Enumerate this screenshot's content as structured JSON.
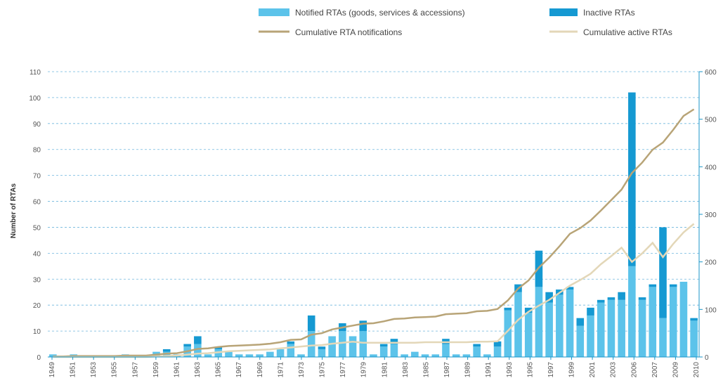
{
  "chart_data": {
    "type": "bar",
    "ylabel": "Number of RTAs",
    "ylim": [
      0,
      110
    ],
    "y_ticks": [
      0,
      10,
      20,
      30,
      40,
      50,
      60,
      70,
      80,
      90,
      100,
      110
    ],
    "y2lim": [
      0,
      600
    ],
    "y2_ticks": [
      0,
      100,
      200,
      300,
      400,
      500,
      600
    ],
    "grid": true,
    "legend_position": "top-right",
    "colors": {
      "notified": "#5cc3ea",
      "inactive": "#1599d2",
      "cumulative": "#b8a477",
      "cumulative_active": "#e3d7b8",
      "axis": "#1a96c8",
      "grid": "#6fb6dd"
    },
    "x_tick_labels": [
      "1949",
      "1951",
      "1953",
      "1955",
      "1957",
      "1959",
      "1961",
      "1963",
      "1965",
      "1967",
      "1969",
      "1971",
      "1973",
      "1975",
      "1977",
      "1979",
      "1981",
      "1983",
      "1985",
      "1987",
      "1989",
      "1991",
      "1993",
      "1995",
      "1997",
      "1999",
      "2001",
      "2003",
      "2006",
      "2007",
      "2009",
      "2010"
    ],
    "x": [
      1948,
      1949,
      1950,
      1951,
      1952,
      1953,
      1954,
      1955,
      1956,
      1957,
      1958,
      1959,
      1960,
      1961,
      1962,
      1963,
      1964,
      1965,
      1966,
      1967,
      1968,
      1969,
      1970,
      1971,
      1972,
      1973,
      1974,
      1975,
      1976,
      1977,
      1978,
      1979,
      1980,
      1981,
      1982,
      1983,
      1984,
      1985,
      1986,
      1987,
      1988,
      1989,
      1990,
      1991,
      1992,
      1993,
      1994,
      1995,
      1996,
      1997,
      1998,
      1999,
      2000,
      2001,
      2002,
      2003,
      2004,
      2005,
      2006,
      2007,
      2008,
      2009,
      2010
    ],
    "series": [
      {
        "name": "Notified RTAs (goods, services & accessions)",
        "kind": "bar",
        "values": [
          1,
          0,
          1,
          0,
          0,
          0,
          0,
          1,
          0,
          0,
          2,
          2,
          1,
          4,
          5,
          1,
          3,
          2,
          1,
          1,
          1,
          2,
          3,
          5,
          1,
          10,
          3,
          8,
          10,
          8,
          10,
          1,
          4,
          5,
          1,
          2,
          1,
          1,
          5,
          1,
          1,
          4,
          1,
          4,
          18,
          25,
          17,
          27,
          21,
          24,
          26,
          12,
          16,
          21,
          22,
          22,
          35,
          22,
          27,
          15,
          27,
          29,
          14
        ]
      },
      {
        "name": "Inactive RTAs",
        "kind": "bar",
        "values": [
          0,
          0,
          0,
          0,
          0,
          0,
          0,
          0,
          0,
          0,
          0,
          1,
          0,
          1,
          3,
          0,
          1,
          0,
          0,
          0,
          0,
          0,
          0,
          1,
          0,
          6,
          1,
          0,
          3,
          0,
          4,
          0,
          1,
          2,
          0,
          0,
          0,
          0,
          2,
          0,
          0,
          1,
          0,
          2,
          1,
          3,
          2,
          14,
          4,
          2,
          1,
          3,
          3,
          1,
          1,
          3,
          67,
          1,
          1,
          35,
          1,
          0,
          1
        ]
      },
      {
        "name": "Cumulative RTA notifications",
        "kind": "line",
        "axis": "right",
        "values": [
          1,
          1,
          2,
          2,
          2,
          2,
          2,
          3,
          3,
          3,
          5,
          7,
          8,
          12,
          17,
          18,
          21,
          23,
          24,
          25,
          26,
          28,
          31,
          36,
          37,
          47,
          50,
          58,
          62,
          66,
          70,
          71,
          75,
          80,
          81,
          83,
          84,
          85,
          90,
          91,
          92,
          96,
          97,
          101,
          119,
          144,
          161,
          188,
          209,
          233,
          259,
          271,
          287,
          308,
          330,
          352,
          387,
          409,
          436,
          451,
          478,
          507,
          521
        ]
      },
      {
        "name": "Cumulative active RTAs",
        "kind": "line",
        "axis": "right",
        "values": [
          0,
          0,
          0,
          0,
          0,
          0,
          0,
          0,
          0,
          0,
          1,
          2,
          3,
          5,
          7,
          8,
          10,
          12,
          13,
          14,
          15,
          16,
          18,
          20,
          22,
          24,
          25,
          28,
          30,
          32,
          30,
          30,
          30,
          30,
          30,
          30,
          31,
          31,
          31,
          31,
          31,
          32,
          32,
          33,
          55,
          78,
          95,
          108,
          120,
          135,
          150,
          162,
          175,
          195,
          212,
          230,
          200,
          218,
          240,
          210,
          238,
          262,
          280
        ]
      }
    ]
  }
}
